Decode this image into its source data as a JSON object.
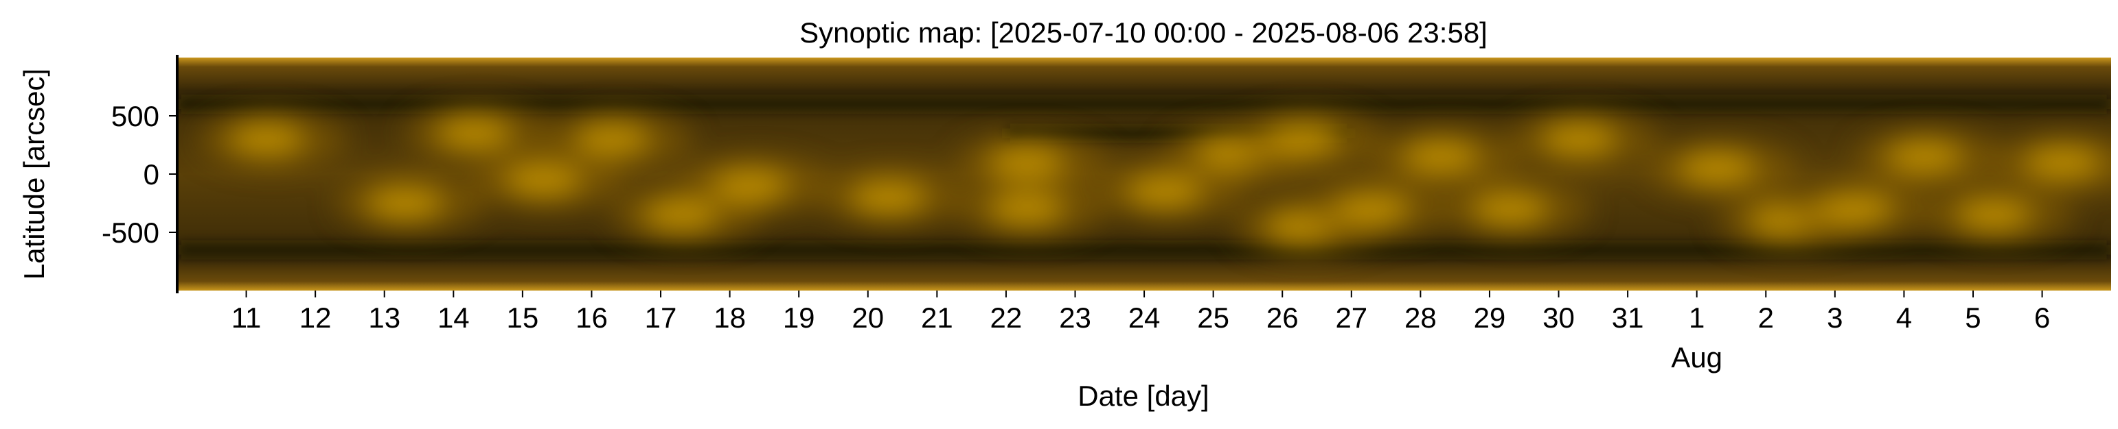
{
  "chart_data": {
    "type": "heatmap",
    "title": "Synoptic map: [2025-07-10 00:00 - 2025-08-06 23:58]",
    "xlabel": "Date [day]",
    "ylabel": "Latitude [arcsec]",
    "x_start": "2025-07-10 00:00",
    "x_end": "2025-08-06 23:58",
    "x_ticks": [
      {
        "date": "2025-07-11",
        "label": "11"
      },
      {
        "date": "2025-07-12",
        "label": "12"
      },
      {
        "date": "2025-07-13",
        "label": "13"
      },
      {
        "date": "2025-07-14",
        "label": "14"
      },
      {
        "date": "2025-07-15",
        "label": "15"
      },
      {
        "date": "2025-07-16",
        "label": "16"
      },
      {
        "date": "2025-07-17",
        "label": "17"
      },
      {
        "date": "2025-07-18",
        "label": "18"
      },
      {
        "date": "2025-07-19",
        "label": "19"
      },
      {
        "date": "2025-07-20",
        "label": "20"
      },
      {
        "date": "2025-07-21",
        "label": "21"
      },
      {
        "date": "2025-07-22",
        "label": "22"
      },
      {
        "date": "2025-07-23",
        "label": "23"
      },
      {
        "date": "2025-07-24",
        "label": "24"
      },
      {
        "date": "2025-07-25",
        "label": "25"
      },
      {
        "date": "2025-07-26",
        "label": "26"
      },
      {
        "date": "2025-07-27",
        "label": "27"
      },
      {
        "date": "2025-07-28",
        "label": "28"
      },
      {
        "date": "2025-07-29",
        "label": "29"
      },
      {
        "date": "2025-07-30",
        "label": "30"
      },
      {
        "date": "2025-07-31",
        "label": "31"
      },
      {
        "date": "2025-08-01",
        "label": "1"
      },
      {
        "date": "2025-08-02",
        "label": "2"
      },
      {
        "date": "2025-08-03",
        "label": "3"
      },
      {
        "date": "2025-08-04",
        "label": "4"
      },
      {
        "date": "2025-08-05",
        "label": "5"
      },
      {
        "date": "2025-08-06",
        "label": "6"
      }
    ],
    "x_month_label": {
      "date": "2025-08-01",
      "label": "Aug"
    },
    "ylim": [
      -1000,
      1000
    ],
    "y_ticks": [
      500,
      0,
      -500
    ],
    "y_tick_labels": [
      "500",
      "0",
      "-500"
    ],
    "colormap": {
      "dark": "#1a1404",
      "mid": "#8a6208",
      "bright": "#ffc400"
    },
    "grid": false,
    "legend": "none",
    "features": {
      "bright_regions": [
        {
          "date": "2025-07-11",
          "lat": 300
        },
        {
          "date": "2025-07-13",
          "lat": -250
        },
        {
          "date": "2025-07-14",
          "lat": 350
        },
        {
          "date": "2025-07-15",
          "lat": -50
        },
        {
          "date": "2025-07-16",
          "lat": 300
        },
        {
          "date": "2025-07-17",
          "lat": -350
        },
        {
          "date": "2025-07-18",
          "lat": -100
        },
        {
          "date": "2025-07-20",
          "lat": -200
        },
        {
          "date": "2025-07-22",
          "lat": 100
        },
        {
          "date": "2025-07-22",
          "lat": -300
        },
        {
          "date": "2025-07-24",
          "lat": -150
        },
        {
          "date": "2025-07-25",
          "lat": 180
        },
        {
          "date": "2025-07-26",
          "lat": 300
        },
        {
          "date": "2025-07-26",
          "lat": -450
        },
        {
          "date": "2025-07-27",
          "lat": -300
        },
        {
          "date": "2025-07-28",
          "lat": 150
        },
        {
          "date": "2025-07-29",
          "lat": -300
        },
        {
          "date": "2025-07-30",
          "lat": 300
        },
        {
          "date": "2025-08-01",
          "lat": 50
        },
        {
          "date": "2025-08-02",
          "lat": -400
        },
        {
          "date": "2025-08-03",
          "lat": -300
        },
        {
          "date": "2025-08-04",
          "lat": 150
        },
        {
          "date": "2025-08-05",
          "lat": -350
        },
        {
          "date": "2025-08-06",
          "lat": 100
        }
      ],
      "dark_bands": [
        {
          "from": "2025-07-10",
          "to": "2025-08-06",
          "lat": 600
        },
        {
          "from": "2025-07-10",
          "to": "2025-08-06",
          "lat": -650
        },
        {
          "from": "2025-07-22",
          "to": "2025-07-26",
          "lat": 350
        }
      ]
    }
  }
}
